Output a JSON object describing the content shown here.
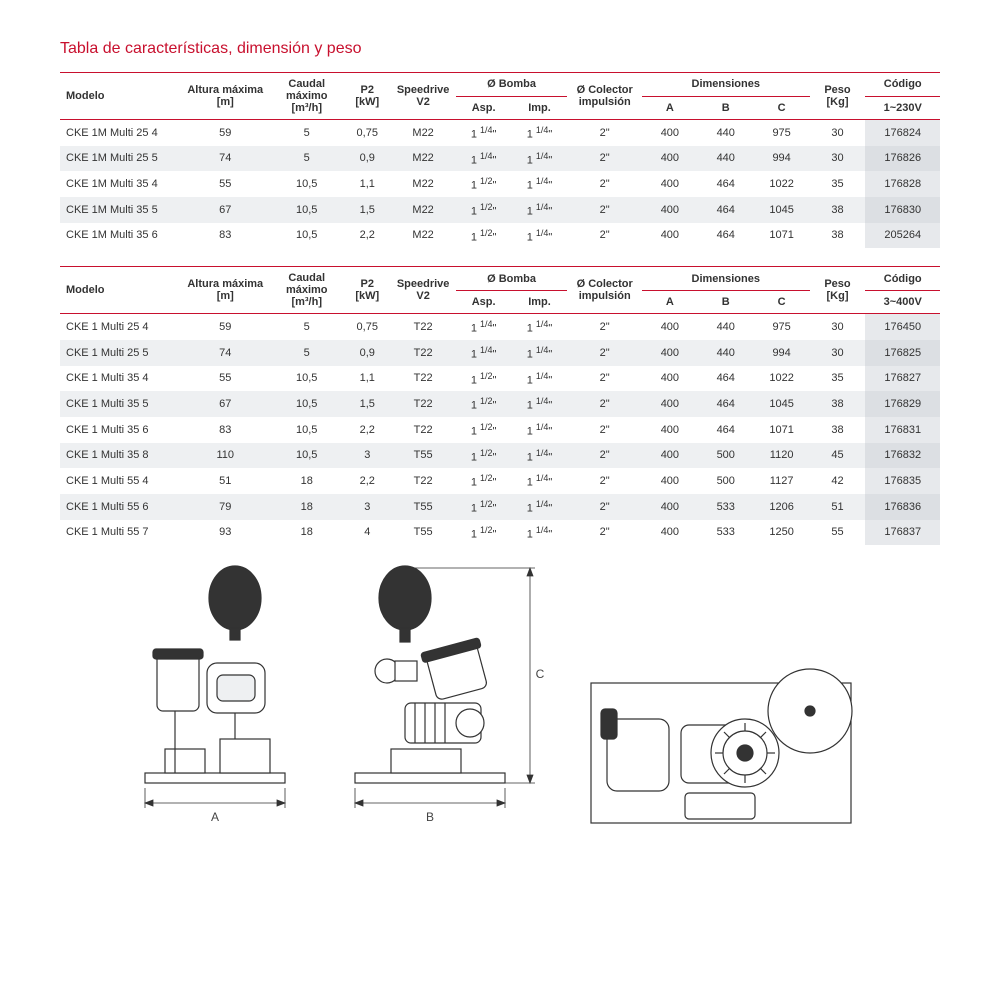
{
  "title": "Tabla de características, dimensión y peso",
  "headers": {
    "modelo": "Modelo",
    "altura": "Altura máxima\n[m]",
    "caudal": "Caudal\nmáximo\n[m³/h]",
    "p2": "P2\n[kW]",
    "speedrive": "Speedrive\nV2",
    "bomba": "Ø  Bomba",
    "asp": "Asp.",
    "imp": "Imp.",
    "colector": "Ø Colector\nimpulsión",
    "dim": "Dimensiones",
    "A": "A",
    "B": "B",
    "C": "C",
    "peso": "Peso\n[Kg]",
    "codigo": "Código",
    "volt1": "1~230V",
    "volt3": "3~400V"
  },
  "table1": [
    {
      "m": "CKE 1M Multi 25 4",
      "alt": "59",
      "cau": "5",
      "p2": "0,75",
      "sd": "M22",
      "asp": "1 1/4\"",
      "imp": "1 1/4\"",
      "col": "2\"",
      "A": "400",
      "B": "440",
      "C": "975",
      "peso": "30",
      "cod": "176824"
    },
    {
      "m": "CKE 1M Multi 25 5",
      "alt": "74",
      "cau": "5",
      "p2": "0,9",
      "sd": "M22",
      "asp": "1 1/4\"",
      "imp": "1 1/4\"",
      "col": "2\"",
      "A": "400",
      "B": "440",
      "C": "994",
      "peso": "30",
      "cod": "176826"
    },
    {
      "m": "CKE 1M Multi 35 4",
      "alt": "55",
      "cau": "10,5",
      "p2": "1,1",
      "sd": "M22",
      "asp": "1 1/2\"",
      "imp": "1 1/4\"",
      "col": "2\"",
      "A": "400",
      "B": "464",
      "C": "1022",
      "peso": "35",
      "cod": "176828"
    },
    {
      "m": "CKE 1M Multi 35 5",
      "alt": "67",
      "cau": "10,5",
      "p2": "1,5",
      "sd": "M22",
      "asp": "1 1/2\"",
      "imp": "1 1/4\"",
      "col": "2\"",
      "A": "400",
      "B": "464",
      "C": "1045",
      "peso": "38",
      "cod": "176830"
    },
    {
      "m": "CKE 1M Multi 35 6",
      "alt": "83",
      "cau": "10,5",
      "p2": "2,2",
      "sd": "M22",
      "asp": "1 1/2\"",
      "imp": "1 1/4\"",
      "col": "2\"",
      "A": "400",
      "B": "464",
      "C": "1071",
      "peso": "38",
      "cod": "205264"
    }
  ],
  "table2": [
    {
      "m": "CKE 1 Multi 25 4",
      "alt": "59",
      "cau": "5",
      "p2": "0,75",
      "sd": "T22",
      "asp": "1 1/4\"",
      "imp": "1 1/4\"",
      "col": "2\"",
      "A": "400",
      "B": "440",
      "C": "975",
      "peso": "30",
      "cod": "176450"
    },
    {
      "m": "CKE 1 Multi 25 5",
      "alt": "74",
      "cau": "5",
      "p2": "0,9",
      "sd": "T22",
      "asp": "1 1/4\"",
      "imp": "1 1/4\"",
      "col": "2\"",
      "A": "400",
      "B": "440",
      "C": "994",
      "peso": "30",
      "cod": "176825"
    },
    {
      "m": "CKE 1 Multi 35 4",
      "alt": "55",
      "cau": "10,5",
      "p2": "1,1",
      "sd": "T22",
      "asp": "1 1/2\"",
      "imp": "1 1/4\"",
      "col": "2\"",
      "A": "400",
      "B": "464",
      "C": "1022",
      "peso": "35",
      "cod": "176827"
    },
    {
      "m": "CKE 1 Multi 35 5",
      "alt": "67",
      "cau": "10,5",
      "p2": "1,5",
      "sd": "T22",
      "asp": "1 1/2\"",
      "imp": "1 1/4\"",
      "col": "2\"",
      "A": "400",
      "B": "464",
      "C": "1045",
      "peso": "38",
      "cod": "176829"
    },
    {
      "m": "CKE 1 Multi 35 6",
      "alt": "83",
      "cau": "10,5",
      "p2": "2,2",
      "sd": "T22",
      "asp": "1 1/2\"",
      "imp": "1 1/4\"",
      "col": "2\"",
      "A": "400",
      "B": "464",
      "C": "1071",
      "peso": "38",
      "cod": "176831"
    },
    {
      "m": "CKE 1 Multi 35 8",
      "alt": "110",
      "cau": "10,5",
      "p2": "3",
      "sd": "T55",
      "asp": "1 1/2\"",
      "imp": "1 1/4\"",
      "col": "2\"",
      "A": "400",
      "B": "500",
      "C": "1120",
      "peso": "45",
      "cod": "176832"
    },
    {
      "m": "CKE 1 Multi 55 4",
      "alt": "51",
      "cau": "18",
      "p2": "2,2",
      "sd": "T22",
      "asp": "1 1/2\"",
      "imp": "1 1/4\"",
      "col": "2\"",
      "A": "400",
      "B": "500",
      "C": "1127",
      "peso": "42",
      "cod": "176835"
    },
    {
      "m": "CKE 1 Multi 55 6",
      "alt": "79",
      "cau": "18",
      "p2": "3",
      "sd": "T55",
      "asp": "1 1/2\"",
      "imp": "1 1/4\"",
      "col": "2\"",
      "A": "400",
      "B": "533",
      "C": "1206",
      "peso": "51",
      "cod": "176836"
    },
    {
      "m": "CKE 1 Multi 55 7",
      "alt": "93",
      "cau": "18",
      "p2": "4",
      "sd": "T55",
      "asp": "1 1/2\"",
      "imp": "1 1/4\"",
      "col": "2\"",
      "A": "400",
      "B": "533",
      "C": "1250",
      "peso": "55",
      "cod": "176837"
    }
  ],
  "dim_labels": {
    "A": "A",
    "B": "B",
    "C": "C"
  }
}
